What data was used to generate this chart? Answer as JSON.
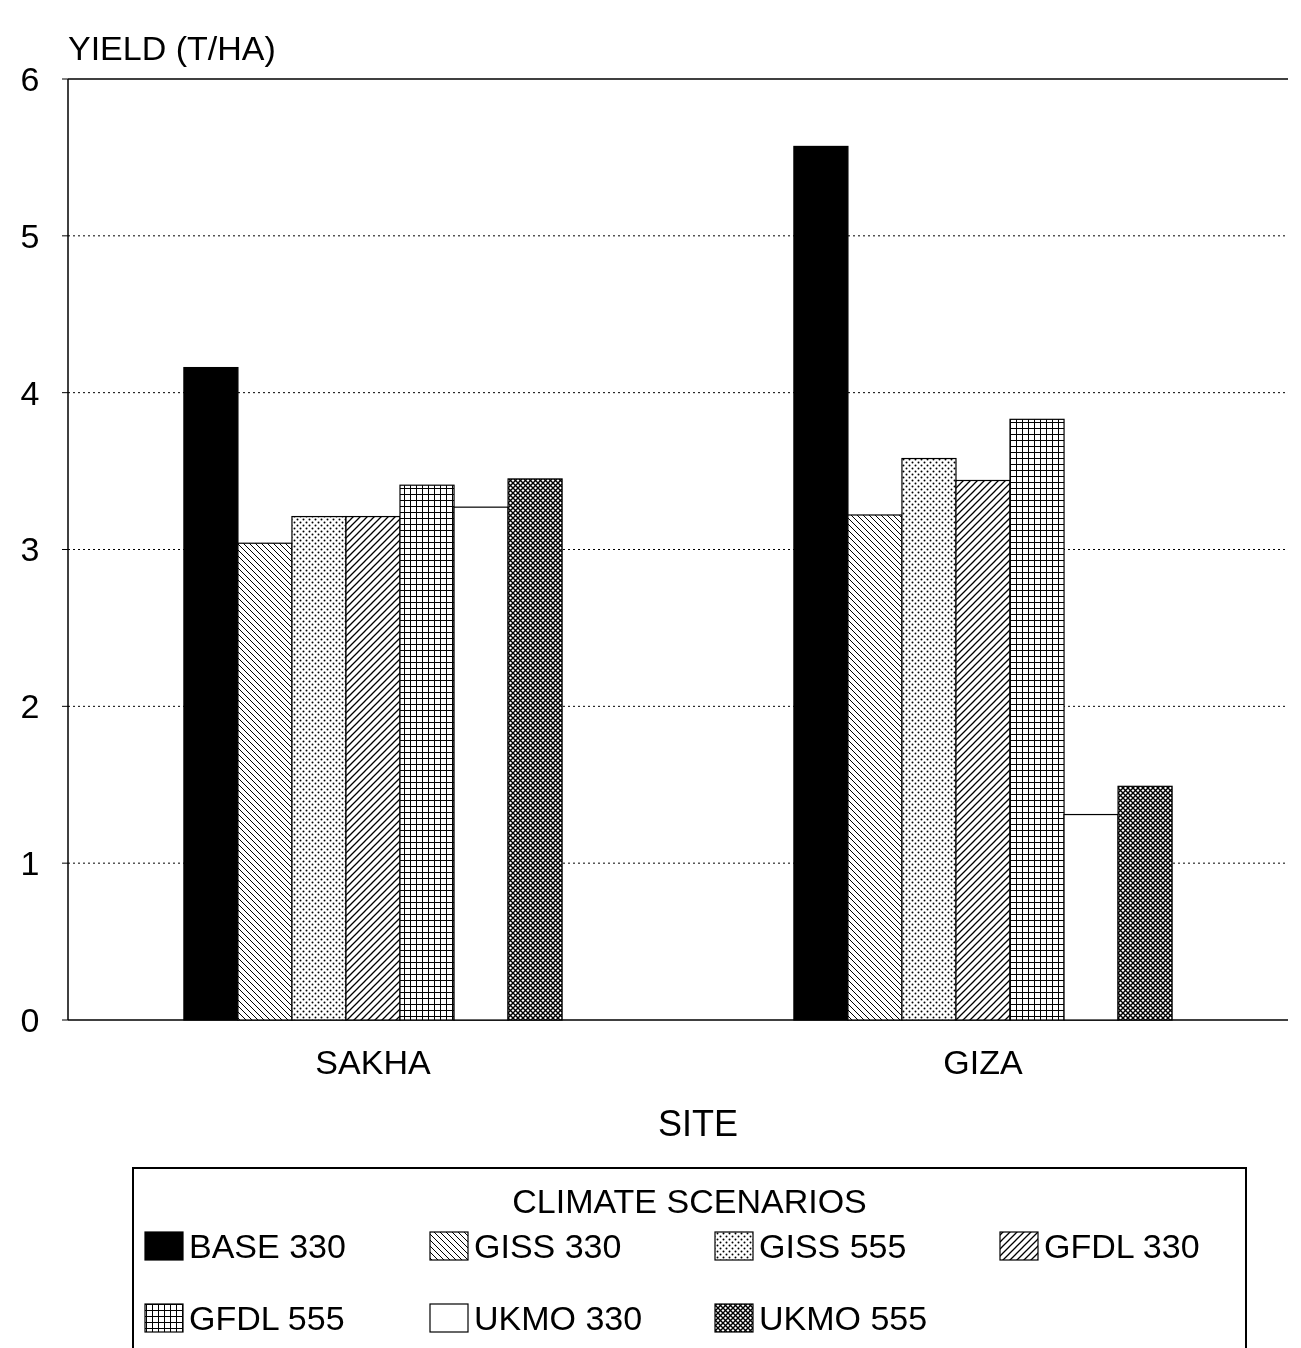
{
  "chart_data": {
    "type": "bar",
    "xlabel": "SITE",
    "ylabel": "YIELD (T/HA)",
    "legend_title": "CLIMATE SCENARIOS",
    "categories": [
      "SAKHA",
      "GIZA"
    ],
    "series": [
      {
        "name": "BASE 330",
        "color": "#000000",
        "values": [
          4.16,
          5.57
        ]
      },
      {
        "name": "GISS 330",
        "color": "#ffffff",
        "values": [
          3.04,
          3.22
        ]
      },
      {
        "name": "GISS 555",
        "color": "#ffffff",
        "values": [
          3.21,
          3.58
        ]
      },
      {
        "name": "GFDL 330",
        "color": "#ffffff",
        "values": [
          3.21,
          3.44
        ]
      },
      {
        "name": "GFDL 555",
        "color": "#ffffff",
        "values": [
          3.41,
          3.83
        ]
      },
      {
        "name": "UKMO 330",
        "color": "#ffffff",
        "values": [
          3.27,
          1.31
        ]
      },
      {
        "name": "UKMO 555",
        "color": "#ffffff",
        "values": [
          3.45,
          1.49
        ]
      }
    ],
    "ylim": [
      0,
      6
    ],
    "yticks": [
      0,
      1,
      2,
      3,
      4,
      5,
      6
    ],
    "grid": "y",
    "legend": "bottom"
  }
}
